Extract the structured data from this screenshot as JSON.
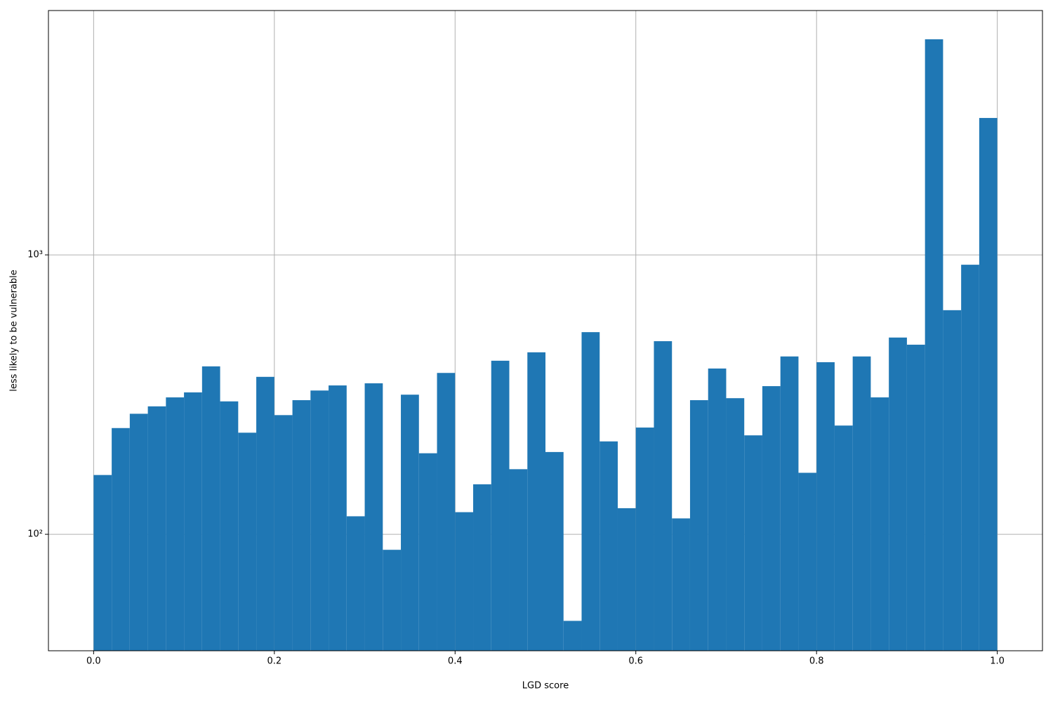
{
  "chart_data": {
    "type": "histogram",
    "x_label": "LGD score",
    "y_label": "less likely to be vulnerable",
    "color": "#1f77b4",
    "log_y": true,
    "grid": true,
    "bins": [
      0,
      0.02,
      0.04,
      0.06,
      0.08,
      0.1,
      0.12,
      0.14,
      0.16,
      0.18,
      0.2,
      0.22,
      0.24,
      0.26,
      0.28,
      0.3,
      0.32,
      0.34,
      0.36,
      0.38,
      0.4,
      0.42,
      0.44,
      0.46,
      0.48,
      0.5,
      0.52,
      0.54,
      0.56,
      0.58,
      0.6,
      0.62,
      0.64,
      0.66,
      0.68,
      0.7,
      0.72,
      0.74,
      0.76,
      0.78,
      0.8,
      0.82,
      0.84,
      0.86,
      0.88,
      0.9,
      0.92,
      0.94,
      0.96,
      0.98,
      1
    ],
    "values": [
      163,
      240,
      270,
      287,
      309,
      322,
      399,
      299,
      231,
      366,
      267,
      302,
      327,
      341,
      116,
      347,
      88,
      316,
      195,
      378,
      120,
      151,
      418,
      171,
      448,
      197,
      49,
      529,
      215,
      124,
      241,
      491,
      114,
      302,
      392,
      307,
      226,
      339,
      433,
      166,
      413,
      245,
      433,
      309,
      506,
      477,
      5910,
      634,
      922,
      3090
    ],
    "xlim": [
      -0.05,
      1.05
    ],
    "ylim": [
      38.3,
      7490
    ],
    "xticks": [
      {
        "value": 0,
        "label": "0.0"
      },
      0.2,
      0.4,
      0.6,
      0.8,
      {
        "value": 1,
        "label": "1.0"
      }
    ],
    "yticks": [
      {
        "value": 100,
        "label": "10²"
      },
      {
        "value": 1000,
        "label": "10³"
      }
    ]
  }
}
